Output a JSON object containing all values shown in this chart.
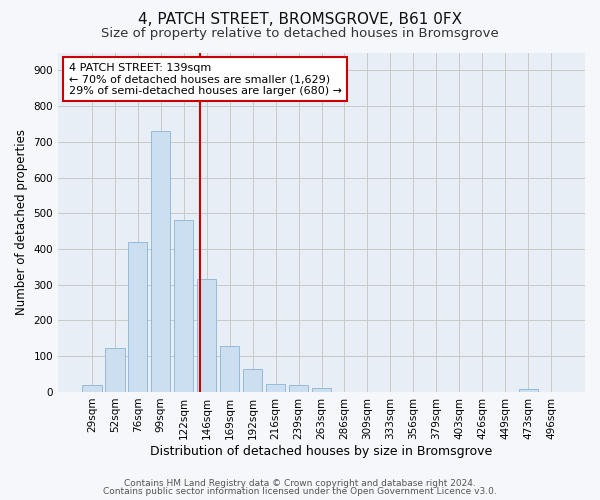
{
  "title1": "4, PATCH STREET, BROMSGROVE, B61 0FX",
  "title2": "Size of property relative to detached houses in Bromsgrove",
  "xlabel": "Distribution of detached houses by size in Bromsgrove",
  "ylabel": "Number of detached properties",
  "bar_labels": [
    "29sqm",
    "52sqm",
    "76sqm",
    "99sqm",
    "122sqm",
    "146sqm",
    "169sqm",
    "192sqm",
    "216sqm",
    "239sqm",
    "263sqm",
    "286sqm",
    "309sqm",
    "333sqm",
    "356sqm",
    "379sqm",
    "403sqm",
    "426sqm",
    "449sqm",
    "473sqm",
    "496sqm"
  ],
  "bar_values": [
    20,
    122,
    419,
    730,
    480,
    315,
    130,
    65,
    22,
    20,
    10,
    0,
    0,
    0,
    0,
    0,
    0,
    0,
    0,
    8,
    0
  ],
  "bar_color": "#ccdff0",
  "bar_edge_color": "#8ab4d4",
  "vline_x": 4.7,
  "vline_color": "#cc0000",
  "annotation_text": "4 PATCH STREET: 139sqm\n← 70% of detached houses are smaller (1,629)\n29% of semi-detached houses are larger (680) →",
  "annotation_box_color": "#ffffff",
  "annotation_box_edge_color": "#cc0000",
  "ylim": [
    0,
    950
  ],
  "yticks": [
    0,
    100,
    200,
    300,
    400,
    500,
    600,
    700,
    800,
    900
  ],
  "grid_color": "#c8c8c8",
  "bg_color": "#f5f7fb",
  "plot_bg_color": "#e8eef6",
  "footer1": "Contains HM Land Registry data © Crown copyright and database right 2024.",
  "footer2": "Contains public sector information licensed under the Open Government Licence v3.0.",
  "title1_fontsize": 11,
  "title2_fontsize": 9.5,
  "xlabel_fontsize": 9,
  "ylabel_fontsize": 8.5,
  "annotation_fontsize": 8,
  "footer_fontsize": 6.5
}
